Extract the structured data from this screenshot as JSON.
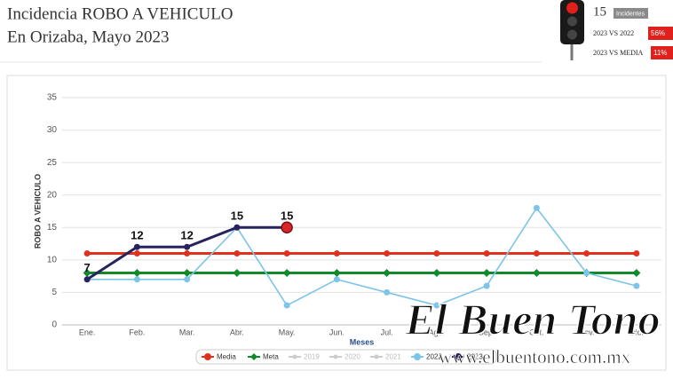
{
  "header": {
    "title": "Incidencia ROBO A VEHICULO",
    "subtitle": "En Orizaba, Mayo 2023",
    "count": "15",
    "count_label": "Incidentes",
    "comparisons": [
      {
        "label": "2023 VS 2022",
        "badge": "56%"
      },
      {
        "label": "2023 VS MEDIA",
        "badge": "11%"
      }
    ]
  },
  "watermark": {
    "brand": "El Buen Tono",
    "url": "www.elbuentono.com.mx"
  },
  "chart_data": {
    "type": "line",
    "x_label": "Meses",
    "y_label": "ROBO A VEHICULO",
    "categories": [
      "Ene.",
      "Feb.",
      "Mar.",
      "Abr.",
      "May.",
      "Jun.",
      "Jul.",
      "Ago.",
      "Sep.",
      "Oct.",
      "Nov.",
      "Dic."
    ],
    "ylim": [
      0,
      35
    ],
    "yticks": [
      0,
      5,
      10,
      15,
      20,
      25,
      30,
      35
    ],
    "grid": true,
    "legend": "bottom",
    "series": [
      {
        "name": "Media",
        "color": "#e0311f",
        "marker": "circle",
        "values": [
          11,
          11,
          11,
          11,
          11,
          11,
          11,
          11,
          11,
          11,
          11,
          11
        ]
      },
      {
        "name": "Meta",
        "color": "#128a2b",
        "marker": "diamond",
        "values": [
          8,
          8,
          8,
          8,
          8,
          8,
          8,
          8,
          8,
          8,
          8,
          8
        ]
      },
      {
        "name": "2019",
        "color": "#cccccc",
        "visible": false
      },
      {
        "name": "2020",
        "color": "#cccccc",
        "visible": false
      },
      {
        "name": "2021",
        "color": "#cccccc",
        "visible": false
      },
      {
        "name": "2022",
        "color": "#7cc4e8",
        "marker": "circle",
        "values": [
          7,
          7,
          7,
          15,
          3,
          7,
          5,
          3,
          6,
          18,
          8,
          6
        ]
      },
      {
        "name": "2023",
        "color": "#27235f",
        "marker": "circle",
        "labels": true,
        "values": [
          7,
          12,
          12,
          15,
          15,
          null,
          null,
          null,
          null,
          null,
          null,
          null
        ]
      }
    ]
  }
}
